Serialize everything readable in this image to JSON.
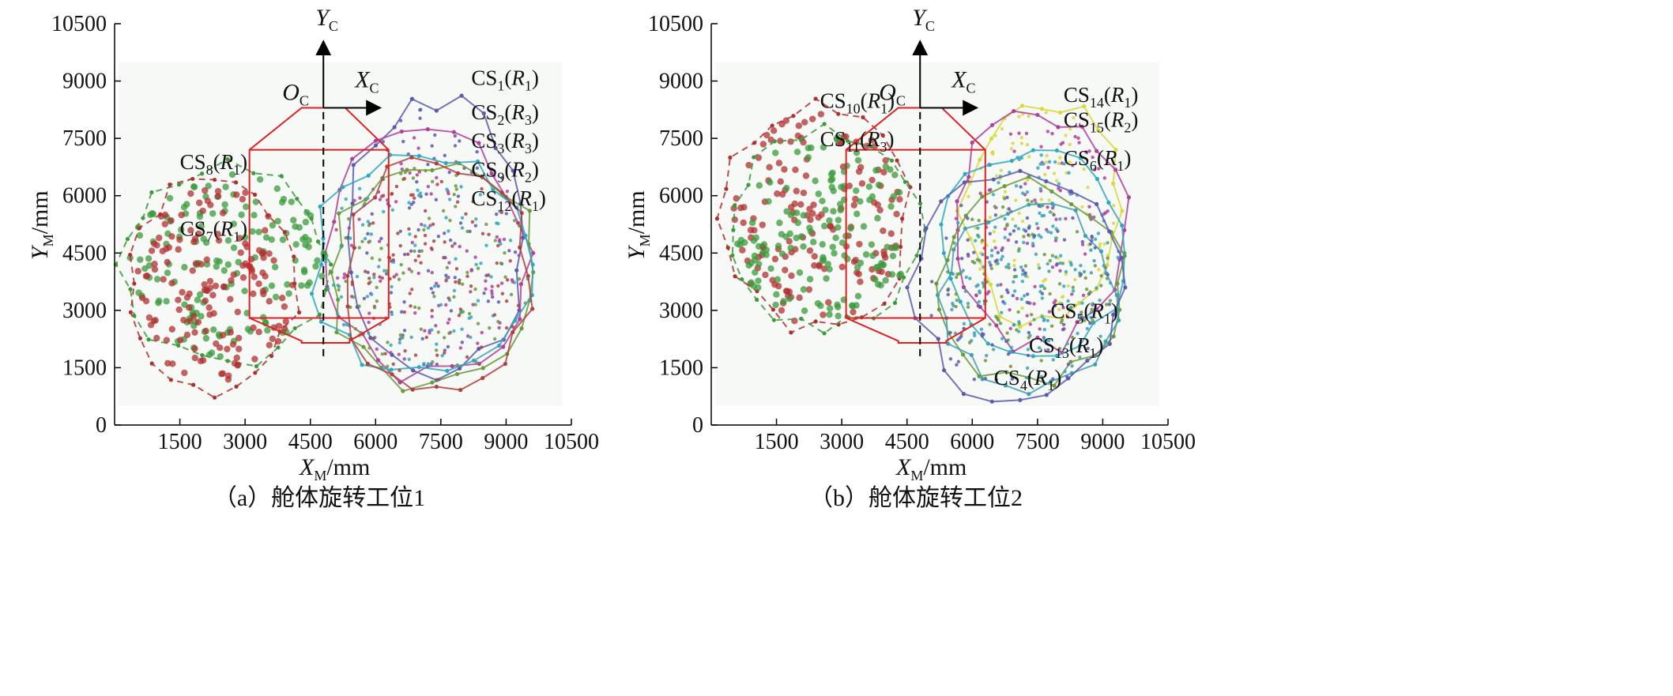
{
  "chart_data": [
    {
      "type": "scatter",
      "caption": "（a）舱体旋转工位1",
      "xlabel": "X_M/mm",
      "ylabel": "Y_M/mm",
      "xlim": [
        0,
        10500
      ],
      "ylim": [
        0,
        10500
      ],
      "xticks": [
        1500,
        3000,
        4500,
        6000,
        7500,
        9000,
        10500
      ],
      "yticks": [
        0,
        1500,
        3000,
        4500,
        6000,
        7500,
        9000,
        10500
      ],
      "frame_axes": {
        "origin": "O_C",
        "x": "X_C",
        "y": "Y_C",
        "origin_xy": [
          4800,
          8300
        ]
      },
      "series": [
        {
          "name": "CS1(R1)",
          "color": "#5a5ab0",
          "center": [
            7400,
            4900
          ],
          "radius": [
            2200,
            3800
          ],
          "label_xy": [
            8200,
            8900
          ]
        },
        {
          "name": "CS2(R3)",
          "color": "#b0409c",
          "center": [
            7200,
            4500
          ],
          "radius": [
            2400,
            3400
          ],
          "label_xy": [
            8200,
            8000
          ]
        },
        {
          "name": "CS3(R3)",
          "color": "#6a9a3a",
          "center": [
            7300,
            4000
          ],
          "radius": [
            2500,
            3100
          ],
          "label_xy": [
            8200,
            7250
          ]
        },
        {
          "name": "CS9(R2)",
          "color": "#30a8c0",
          "center": [
            7000,
            4200
          ],
          "radius": [
            2600,
            3000
          ],
          "label_xy": [
            8200,
            6500
          ]
        },
        {
          "name": "CS12(R1)",
          "color": "#b04040",
          "center": [
            7400,
            3900
          ],
          "radius": [
            2200,
            3200
          ],
          "label_xy": [
            8200,
            5750
          ]
        },
        {
          "name": "CS8(R1)",
          "color": "#3b9a3b",
          "center": [
            2600,
            4200
          ],
          "radius": [
            2500,
            2700
          ],
          "label_xy": [
            1500,
            6700
          ]
        },
        {
          "name": "CS7(R1)",
          "color": "#b03030",
          "center": [
            2300,
            3700
          ],
          "radius": [
            2000,
            2900
          ],
          "label_xy": [
            1500,
            4950
          ]
        }
      ]
    },
    {
      "type": "scatter",
      "caption": "（b）舱体旋转工位2",
      "xlabel": "X_M/mm",
      "ylabel": "Y_M/mm",
      "xlim": [
        0,
        10500
      ],
      "ylim": [
        0,
        10500
      ],
      "xticks": [
        1500,
        3000,
        4500,
        6000,
        7500,
        9000,
        10500
      ],
      "yticks": [
        0,
        1500,
        3000,
        4500,
        6000,
        7500,
        9000,
        10500
      ],
      "frame_axes": {
        "origin": "O_C",
        "x": "X_C",
        "y": "Y_C",
        "origin_xy": [
          4800,
          8300
        ]
      },
      "series": [
        {
          "name": "CS10(R1)",
          "color": "#b03030",
          "center": [
            2400,
            5400
          ],
          "radius": [
            2200,
            3100
          ],
          "label_xy": [
            2500,
            8300
          ]
        },
        {
          "name": "CS11(R3)",
          "color": "#3b9a3b",
          "center": [
            2600,
            5100
          ],
          "radius": [
            2300,
            2700
          ],
          "label_xy": [
            2500,
            7300
          ]
        },
        {
          "name": "CS14(R1)",
          "color": "#d8d840",
          "center": [
            7600,
            5600
          ],
          "radius": [
            1900,
            3100
          ],
          "label_xy": [
            8100,
            8450
          ]
        },
        {
          "name": "CS15(R2)",
          "color": "#b0409c",
          "center": [
            7500,
            5100
          ],
          "radius": [
            2100,
            3200
          ],
          "label_xy": [
            8100,
            7800
          ]
        },
        {
          "name": "CS6(R1)",
          "color": "#30a8c0",
          "center": [
            7400,
            4500
          ],
          "radius": [
            2200,
            2900
          ],
          "label_xy": [
            8100,
            6800
          ]
        },
        {
          "name": "CS5(R1)",
          "color": "#6a9a3a",
          "center": [
            7300,
            3700
          ],
          "radius": [
            2200,
            2700
          ],
          "label_xy": [
            7800,
            2800
          ]
        },
        {
          "name": "CS13(R1)",
          "color": "#40a0b0",
          "center": [
            7300,
            3400
          ],
          "radius": [
            2100,
            2500
          ],
          "label_xy": [
            7300,
            1900
          ]
        },
        {
          "name": "CS4(R1)",
          "color": "#5a5ab0",
          "center": [
            7100,
            3600
          ],
          "radius": [
            2500,
            3100
          ],
          "label_xy": [
            6500,
            1050
          ]
        }
      ]
    }
  ]
}
